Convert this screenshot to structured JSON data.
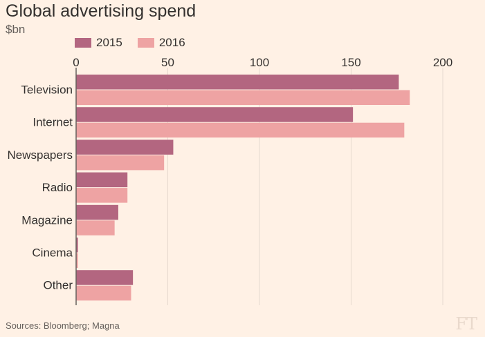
{
  "chart_data": {
    "type": "bar",
    "orientation": "horizontal",
    "title": "Global advertising spend",
    "subtitle": "$bn",
    "categories": [
      "Television",
      "Internet",
      "Newspapers",
      "Radio",
      "Magazine",
      "Cinema",
      "Other"
    ],
    "series": [
      {
        "name": "2015",
        "color": "#b36680",
        "values": [
          176,
          151,
          53,
          28,
          23,
          1,
          31
        ]
      },
      {
        "name": "2016",
        "color": "#eea3a3",
        "values": [
          182,
          179,
          48,
          28,
          21,
          1,
          30
        ]
      }
    ],
    "xlim": [
      0,
      200
    ],
    "xticks": [
      0,
      50,
      100,
      150,
      200
    ],
    "grid": true,
    "legend_position": "top-left",
    "source": "Sources: Bloomberg; Magna",
    "logo": "FT"
  },
  "colors": {
    "background": "#fff1e5",
    "grid": "#e6d9ce",
    "axis": "#66605c"
  }
}
